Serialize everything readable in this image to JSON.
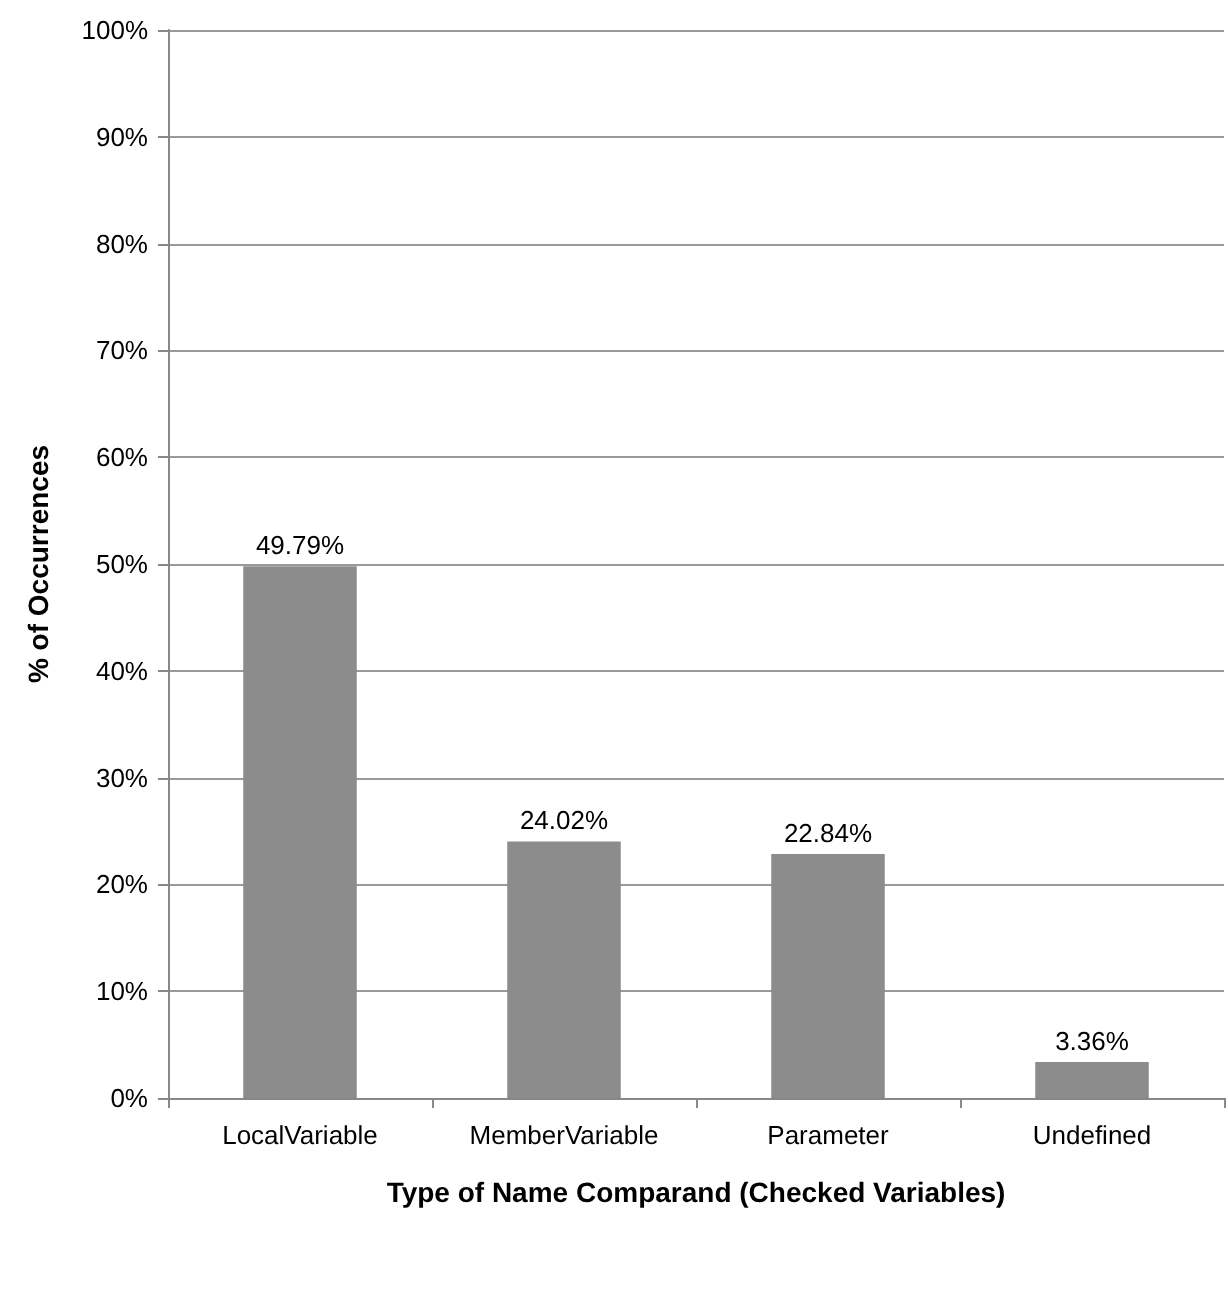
{
  "chart_data": {
    "type": "bar",
    "xlabel": "Type of Name Comparand (Checked Variables)",
    "ylabel": "% of Occurrences",
    "categories": [
      "LocalVariable",
      "MemberVariable",
      "Parameter",
      "Undefined"
    ],
    "values": [
      49.79,
      24.02,
      22.84,
      3.36
    ],
    "value_labels": [
      "49.79%",
      "24.02%",
      "22.84%",
      "3.36%"
    ],
    "color": "#8c8c8c",
    "ylim": [
      0,
      100
    ],
    "yticks": [
      {
        "value": 0,
        "label": "0%"
      },
      {
        "value": 10,
        "label": "10%"
      },
      {
        "value": 20,
        "label": "20%"
      },
      {
        "value": 30,
        "label": "30%"
      },
      {
        "value": 40,
        "label": "40%"
      },
      {
        "value": 50,
        "label": "50%"
      },
      {
        "value": 60,
        "label": "60%"
      },
      {
        "value": 70,
        "label": "70%"
      },
      {
        "value": 80,
        "label": "80%"
      },
      {
        "value": 90,
        "label": "90%"
      },
      {
        "value": 100,
        "label": "100%"
      }
    ],
    "grid": "y"
  }
}
